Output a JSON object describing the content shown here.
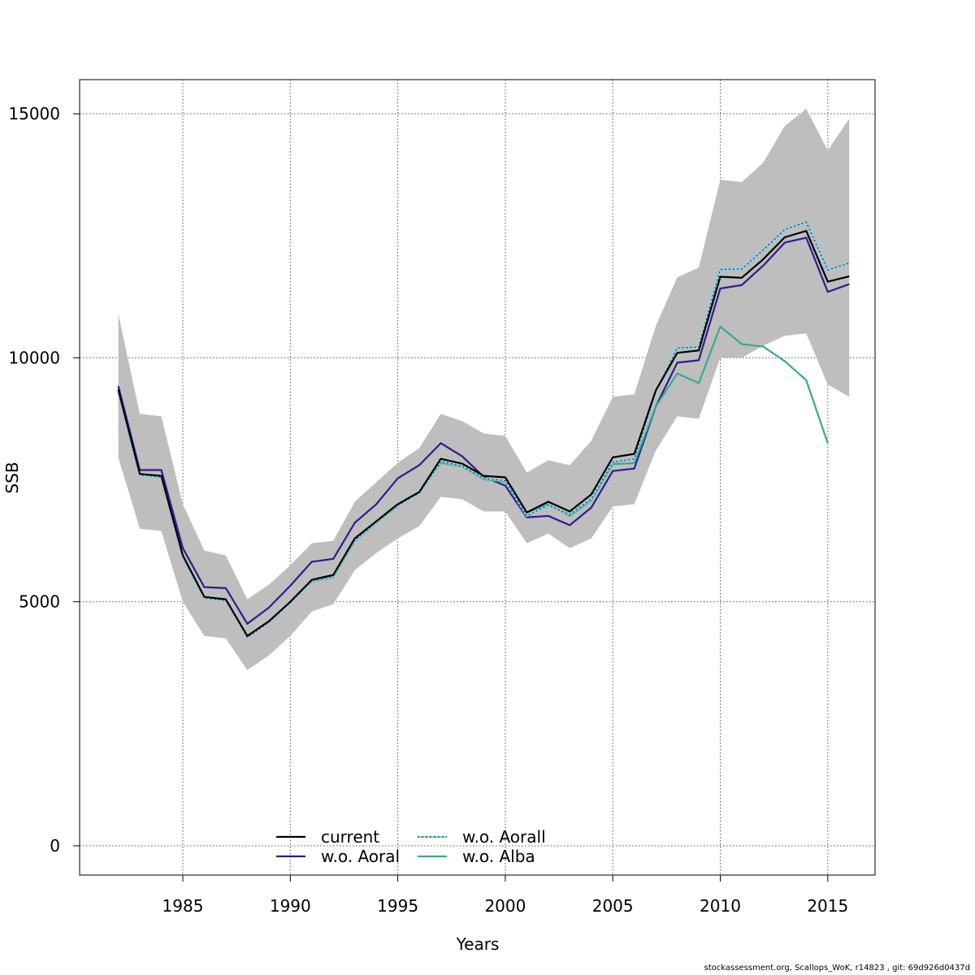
{
  "chart_data": {
    "type": "line",
    "title": "",
    "xlabel": "Years",
    "ylabel": "SSB",
    "xlim": [
      1980.2,
      2017.2
    ],
    "ylim": [
      -600,
      15700
    ],
    "x_ticks": [
      1985,
      1990,
      1995,
      2000,
      2005,
      2010,
      2015
    ],
    "y_ticks": [
      0,
      5000,
      10000,
      15000
    ],
    "grid": true,
    "legend_position": "bottom",
    "confidence_band": {
      "color": "#bebebe",
      "x": [
        1982,
        1983,
        1984,
        1985,
        1986,
        1987,
        1988,
        1989,
        1990,
        1991,
        1992,
        1993,
        1994,
        1995,
        1996,
        1997,
        1998,
        1999,
        2000,
        2001,
        2002,
        2003,
        2004,
        2005,
        2006,
        2007,
        2008,
        2009,
        2010,
        2011,
        2012,
        2013,
        2014,
        2015,
        2016
      ],
      "upper": [
        10900,
        8850,
        8800,
        7000,
        6050,
        5950,
        5050,
        5350,
        5750,
        6200,
        6250,
        7050,
        7450,
        7850,
        8150,
        8850,
        8700,
        8450,
        8400,
        7650,
        7900,
        7800,
        8300,
        9200,
        9250,
        10650,
        11650,
        11850,
        13650,
        13600,
        14000,
        14750,
        15100,
        14250,
        14900
      ],
      "lower": [
        7950,
        6500,
        6450,
        5000,
        4300,
        4250,
        3600,
        3900,
        4300,
        4800,
        4950,
        5650,
        6000,
        6300,
        6550,
        7150,
        7100,
        6850,
        6850,
        6200,
        6400,
        6100,
        6300,
        6950,
        7000,
        8100,
        8800,
        8750,
        10000,
        10000,
        10250,
        10450,
        10500,
        9450,
        9200
      ]
    },
    "series": [
      {
        "name": "current",
        "color": "#000000",
        "dash": "solid",
        "x": [
          1982,
          1983,
          1984,
          1985,
          1986,
          1987,
          1988,
          1989,
          1990,
          1991,
          1992,
          1993,
          1994,
          1995,
          1996,
          1997,
          1998,
          1999,
          2000,
          2001,
          2002,
          2003,
          2004,
          2005,
          2006,
          2007,
          2008,
          2009,
          2010,
          2011,
          2012,
          2013,
          2014,
          2015,
          2016
        ],
        "values": [
          9350,
          7620,
          7580,
          5950,
          5100,
          5050,
          4300,
          4600,
          5000,
          5450,
          5550,
          6300,
          6650,
          7000,
          7250,
          7930,
          7830,
          7580,
          7550,
          6830,
          7050,
          6850,
          7200,
          7960,
          8030,
          9330,
          10100,
          10150,
          11660,
          11640,
          12020,
          12470,
          12600,
          11560,
          11670
        ]
      },
      {
        "name": "w.o. Aoral",
        "color": "#2f1b8c",
        "dash": "solid",
        "x": [
          1982,
          1983,
          1984,
          1985,
          1986,
          1987,
          1988,
          1989,
          1990,
          1991,
          1992,
          1993,
          1994,
          1995,
          1996,
          1997,
          1998,
          1999,
          2000,
          2001,
          2002,
          2003,
          2004,
          2005,
          2006,
          2007,
          2008,
          2009,
          2010,
          2011,
          2012,
          2013,
          2014,
          2015,
          2016
        ],
        "values": [
          9420,
          7700,
          7700,
          6100,
          5300,
          5280,
          4550,
          4880,
          5330,
          5820,
          5880,
          6620,
          7000,
          7530,
          7800,
          8250,
          7980,
          7560,
          7380,
          6730,
          6760,
          6570,
          6930,
          7680,
          7730,
          9000,
          9900,
          9950,
          11420,
          11490,
          11890,
          12360,
          12460,
          11350,
          11510
        ]
      },
      {
        "name": "w.o. Aorall",
        "color": "#7fd3f2",
        "dash": "dotted",
        "x": [
          1982,
          1983,
          1984,
          1985,
          1986,
          1987,
          1988,
          1989,
          1990,
          1991,
          1992,
          1993,
          1994,
          1995,
          1996,
          1997,
          1998,
          1999,
          2000,
          2001,
          2002,
          2003,
          2004,
          2005,
          2006,
          2007,
          2008,
          2009,
          2010,
          2011,
          2012,
          2013,
          2014,
          2015,
          2016
        ],
        "values": [
          9330,
          7600,
          7560,
          5930,
          5080,
          5030,
          4270,
          4580,
          4980,
          5430,
          5530,
          6270,
          6630,
          6980,
          7230,
          7880,
          7780,
          7530,
          7480,
          6760,
          6980,
          6790,
          7110,
          7860,
          7930,
          9310,
          10200,
          10220,
          11810,
          11820,
          12210,
          12630,
          12780,
          11800,
          11940
        ]
      },
      {
        "name": "w.o. Alba",
        "color": "#3aa88f",
        "dash": "solid",
        "x": [
          1982,
          1983,
          1984,
          1985,
          1986,
          1987,
          1988,
          1989,
          1990,
          1991,
          1992,
          1993,
          1994,
          1995,
          1996,
          1997,
          1998,
          1999,
          2000,
          2001,
          2002,
          2003,
          2004,
          2005,
          2006,
          2007,
          2008,
          2009,
          2010,
          2011,
          2012,
          2013,
          2014,
          2015
        ],
        "values": [
          9300,
          7600,
          7550,
          5920,
          5080,
          5030,
          4280,
          4580,
          4990,
          5420,
          5510,
          6250,
          6620,
          6970,
          7240,
          7850,
          7770,
          7510,
          7460,
          6830,
          7000,
          6760,
          7080,
          7820,
          7840,
          9000,
          9680,
          9480,
          10640,
          10280,
          10230,
          9930,
          9540,
          8250
        ]
      }
    ]
  },
  "footer": {
    "text": "stockassessment.org, Scallops_WoK, r14823 , git: 69d926d0437d"
  }
}
